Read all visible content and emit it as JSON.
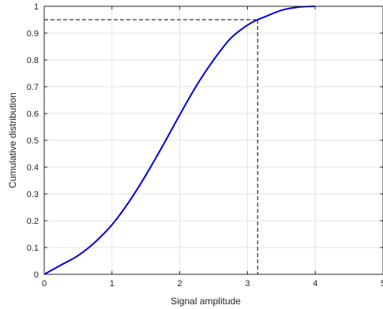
{
  "chart_data": {
    "type": "line",
    "title": "",
    "xlabel": "Signal amplitude",
    "ylabel": "Cumulative distribution",
    "xlim": [
      0,
      5
    ],
    "ylim": [
      0,
      1
    ],
    "x_ticks": [
      "0",
      "1",
      "2",
      "3",
      "4",
      "5"
    ],
    "y_ticks": [
      "0",
      "0.1",
      "0.2",
      "0.3",
      "0.4",
      "0.5",
      "0.6",
      "0.7",
      "0.8",
      "0.9",
      "1"
    ],
    "grid": true,
    "series": [
      {
        "color": "#0000dd",
        "x": [
          0,
          0.25,
          0.5,
          0.75,
          1.0,
          1.25,
          1.5,
          1.75,
          2.0,
          2.25,
          2.5,
          2.75,
          3.0,
          3.15,
          3.25,
          3.5,
          3.75,
          4.0
        ],
        "y": [
          0,
          0.035,
          0.07,
          0.12,
          0.185,
          0.27,
          0.37,
          0.48,
          0.595,
          0.705,
          0.8,
          0.88,
          0.93,
          0.95,
          0.96,
          0.985,
          0.997,
          1.0
        ]
      }
    ],
    "reference_lines": {
      "color": "#000000",
      "style": "dashed",
      "x": 3.15,
      "y": 0.95
    }
  }
}
